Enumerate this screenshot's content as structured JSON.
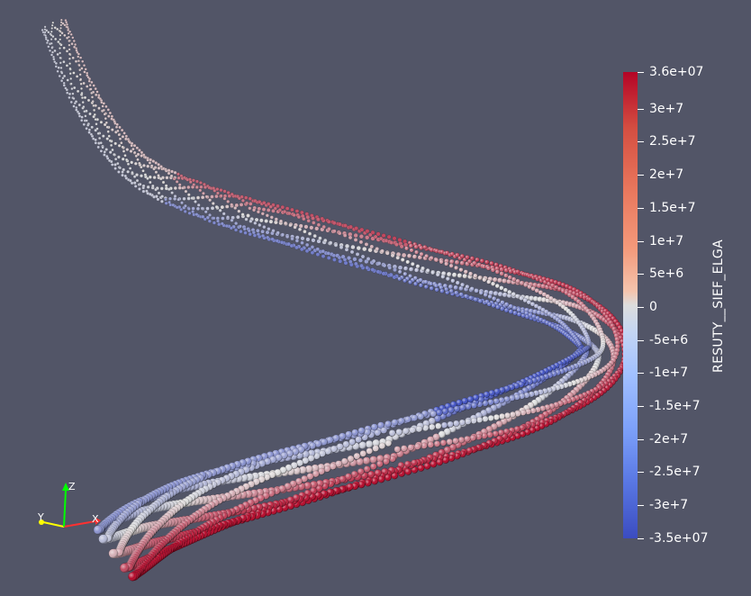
{
  "scalar_bar": {
    "title": "RESUTY__SIEF_ELGA",
    "tick_labels": [
      "3.6e+07",
      "3e+7",
      "2.5e+7",
      "2e+7",
      "1.5e+7",
      "1e+7",
      "5e+6",
      "0",
      "-5e+6",
      "-1e+7",
      "-1.5e+7",
      "-2e+7",
      "-2.5e+7",
      "-3e+7",
      "-3.5e+07"
    ],
    "range": [
      -35000000,
      36000000
    ],
    "colors": {
      "max": "#b40426",
      "mid": "#dddddd",
      "min": "#3b4cc0"
    }
  },
  "orientation_axes": {
    "x_label": "X",
    "y_label": "Y",
    "z_label": "Z",
    "colors": {
      "x": "#ff0000",
      "y": "#ffff00",
      "z": "#00ff00"
    }
  },
  "viewport": {
    "background": "#525567"
  }
}
